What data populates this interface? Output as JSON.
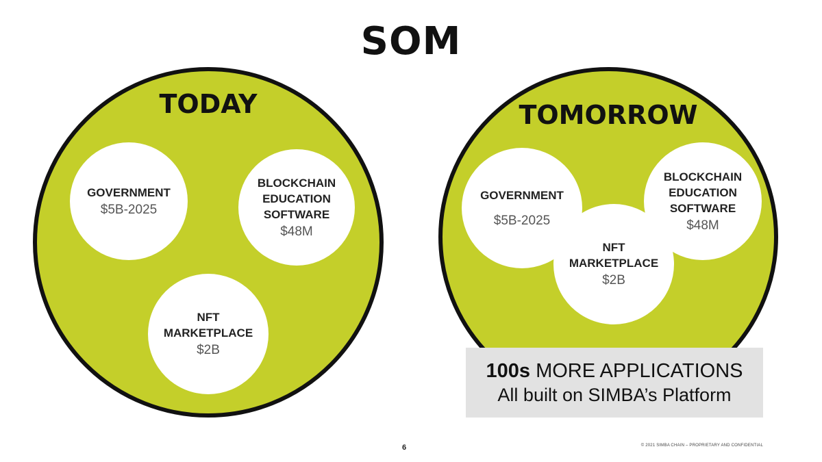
{
  "title": "SOM",
  "today": {
    "heading": "TODAY",
    "segments": [
      {
        "name": "GOVERNMENT",
        "value": "$5B-2025"
      },
      {
        "name": "BLOCKCHAIN\nEDUCATION\nSOFTWARE",
        "value": "$48M"
      },
      {
        "name": "NFT\nMARKETPLACE",
        "value": "$2B"
      }
    ]
  },
  "tomorrow": {
    "heading": "TOMORROW",
    "segments": [
      {
        "name": "GOVERNMENT",
        "value": "$5B-2025"
      },
      {
        "name": "BLOCKCHAIN\nEDUCATION\nSOFTWARE",
        "value": "$48M"
      },
      {
        "name": "NFT\nMARKETPLACE",
        "value": "$2B"
      }
    ]
  },
  "callout": {
    "bold": "100s",
    "rest": " MORE APPLICATIONS",
    "line2": "All built on SIMBA’s Platform"
  },
  "colors": {
    "circle_fill": "#c4cf2a",
    "circle_border": "#111111",
    "callout_bg": "#e2e2e2"
  },
  "footer": {
    "page_number": "6",
    "note": "© 2021 SIMBA CHAIN – PROPRIETARY AND CONFIDENTIAL"
  }
}
